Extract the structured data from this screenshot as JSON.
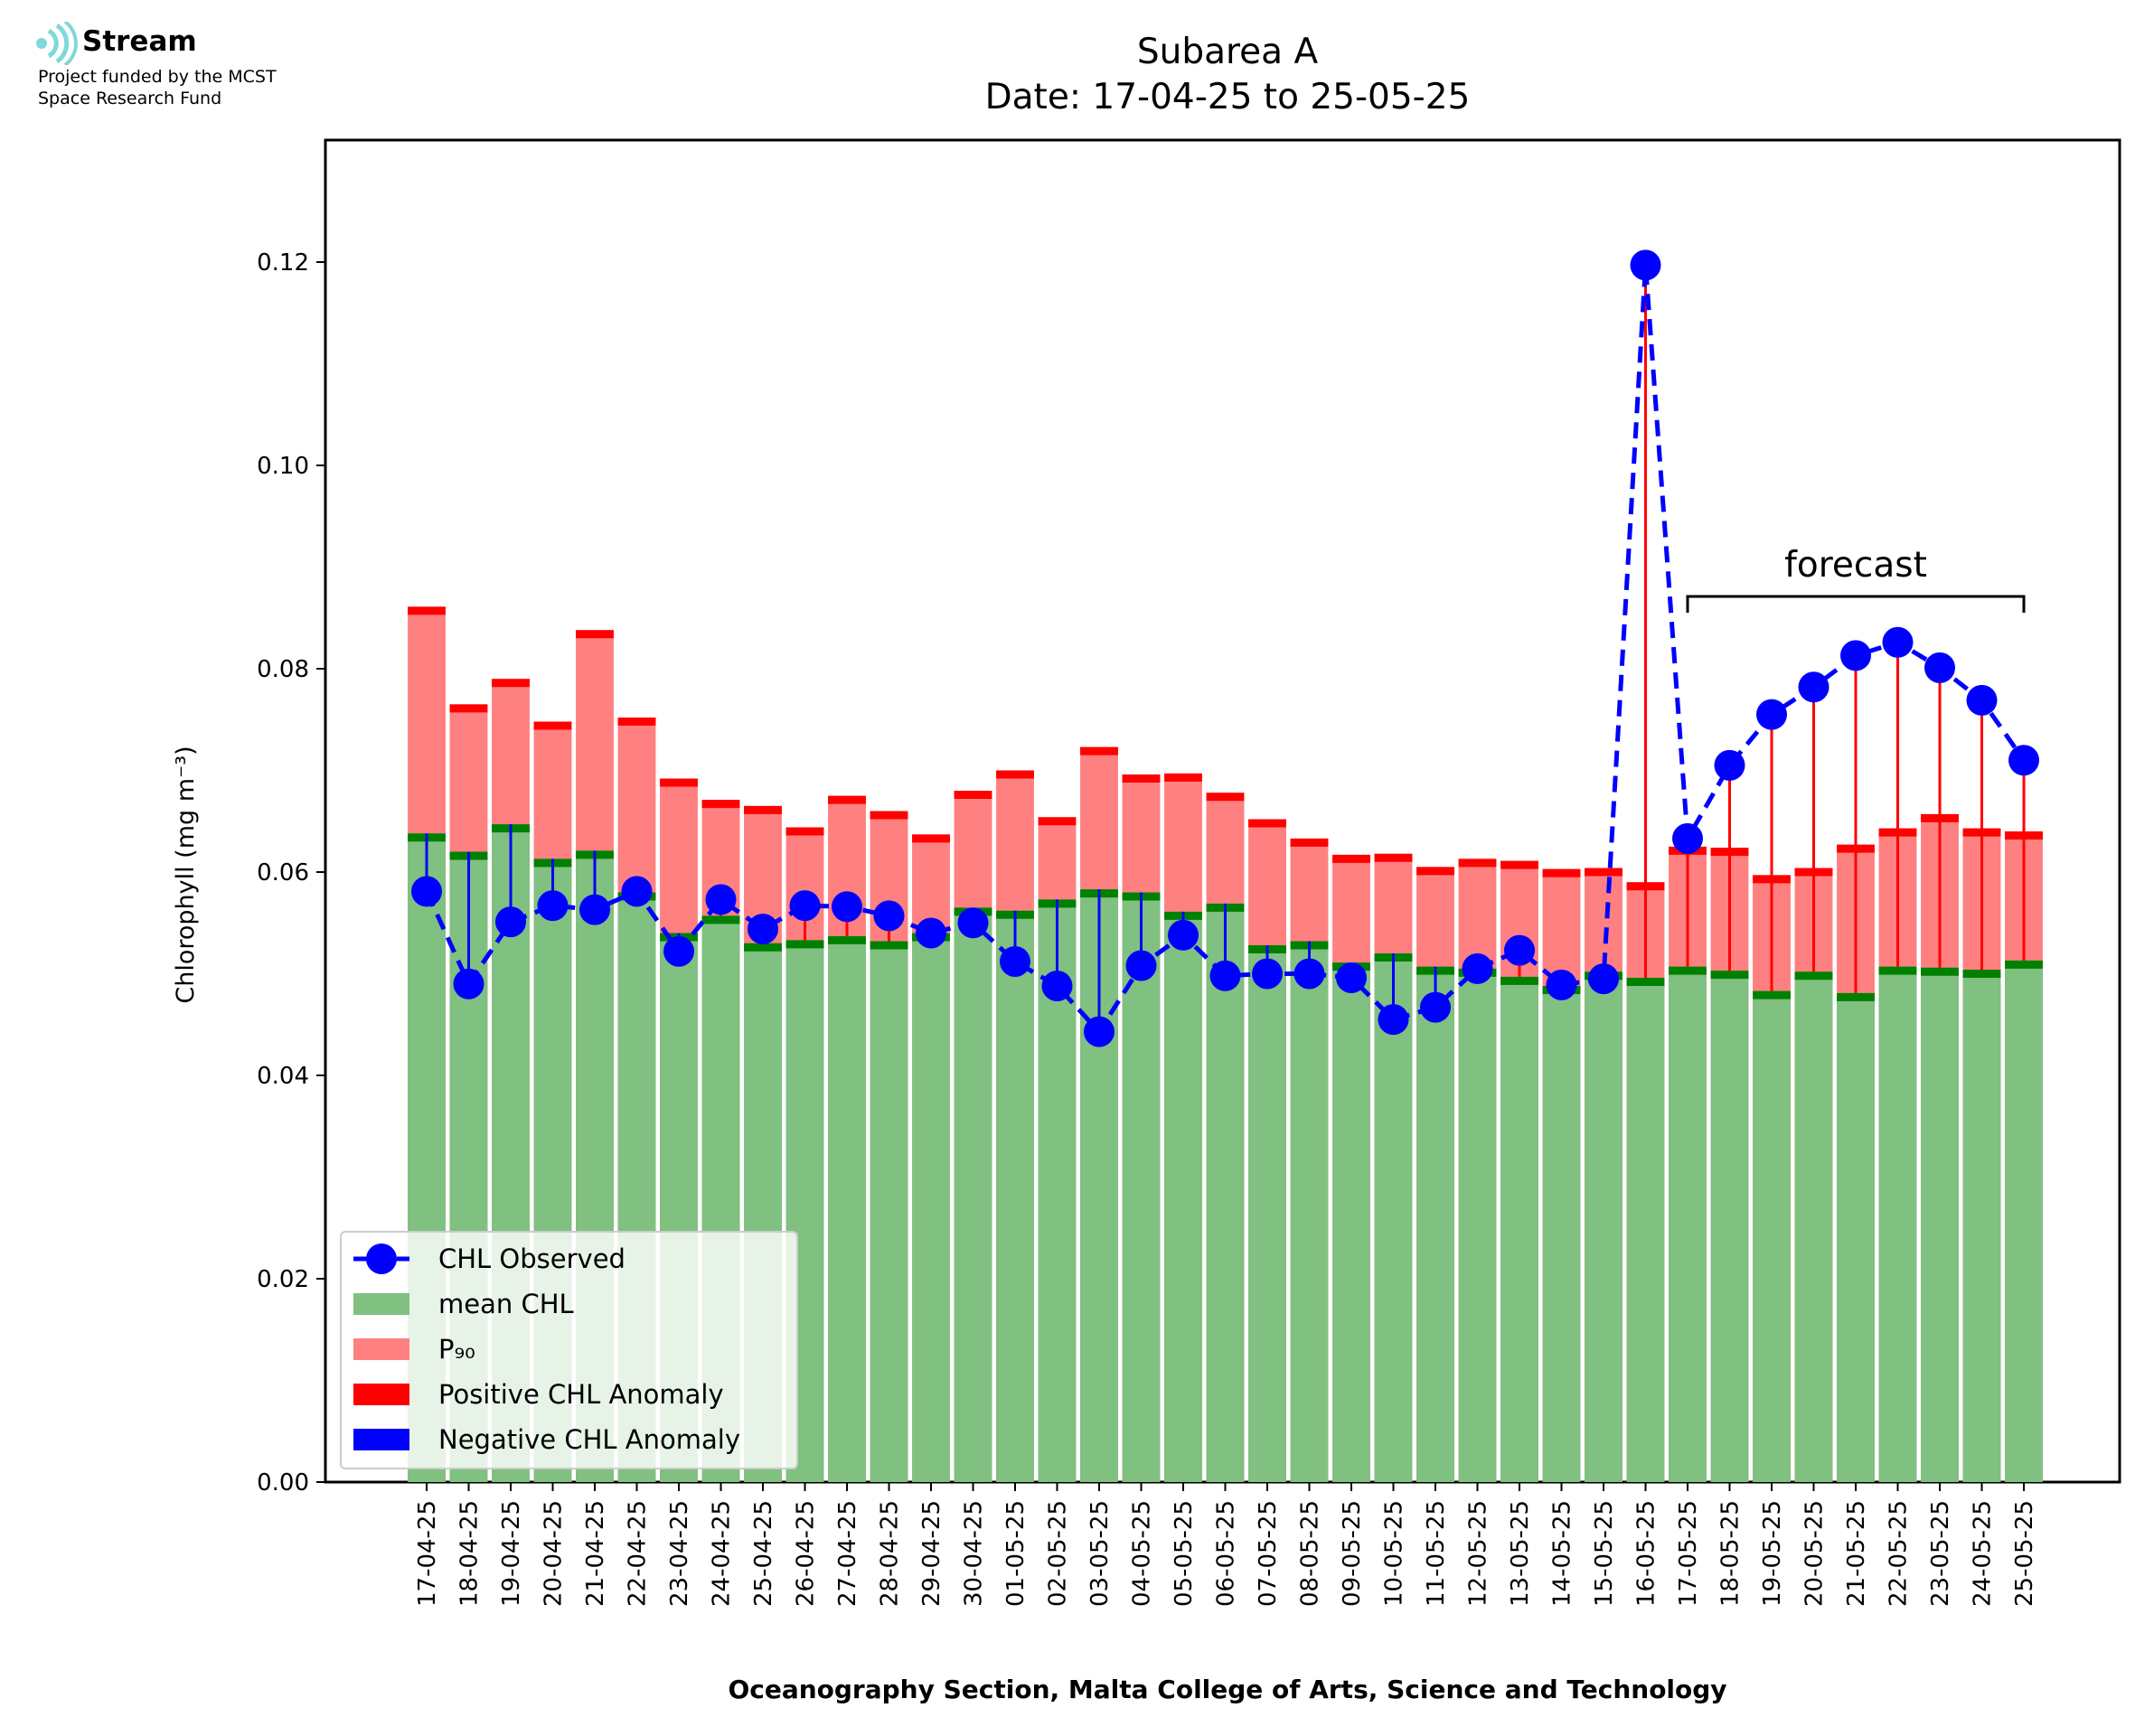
{
  "logo": {
    "name": "Stream",
    "line1": "Project funded by the MCST",
    "line2": "Space Research Fund",
    "icon": "stream-waves-icon",
    "color": "#7fd9d9"
  },
  "chart_data": {
    "type": "bar",
    "title": "Subarea A",
    "subtitle": "Date: 17-04-25 to 25-05-25",
    "xlabel": "Oceanography Section, Malta College of Arts, Science and Technology",
    "ylabel": "Chlorophyll (mg m⁻³)",
    "ylim": [
      0,
      0.132
    ],
    "yticks": [
      "0.00",
      "0.02",
      "0.04",
      "0.06",
      "0.08",
      "0.10",
      "0.12"
    ],
    "grid": false,
    "legend_position": "lower-left",
    "categories": [
      "17-04-25",
      "18-04-25",
      "19-04-25",
      "20-04-25",
      "21-04-25",
      "22-04-25",
      "23-04-25",
      "24-04-25",
      "25-04-25",
      "26-04-25",
      "27-04-25",
      "28-04-25",
      "29-04-25",
      "30-04-25",
      "01-05-25",
      "02-05-25",
      "03-05-25",
      "04-05-25",
      "05-05-25",
      "06-05-25",
      "07-05-25",
      "08-05-25",
      "09-05-25",
      "10-05-25",
      "11-05-25",
      "12-05-25",
      "13-05-25",
      "14-05-25",
      "15-05-25",
      "16-05-25",
      "17-05-25",
      "18-05-25",
      "19-05-25",
      "20-05-25",
      "21-05-25",
      "22-05-25",
      "23-05-25",
      "24-05-25",
      "25-05-25"
    ],
    "series": [
      {
        "name": "CHL Observed",
        "color": "#0000ff",
        "values": [
          0.0581,
          0.049,
          0.0551,
          0.0567,
          0.0563,
          0.0581,
          0.0522,
          0.0573,
          0.0544,
          0.0567,
          0.0566,
          0.0557,
          0.054,
          0.055,
          0.0512,
          0.0488,
          0.0443,
          0.0508,
          0.0538,
          0.0498,
          0.05,
          0.05,
          0.0496,
          0.0455,
          0.0467,
          0.0505,
          0.0523,
          0.0489,
          0.0495,
          0.1197,
          0.0633,
          0.0705,
          0.0755,
          0.0782,
          0.0813,
          0.0826,
          0.0801,
          0.0769,
          0.071
        ]
      },
      {
        "name": "mean CHL",
        "color": "#80c080",
        "values": [
          0.0638,
          0.062,
          0.0647,
          0.0613,
          0.0621,
          0.058,
          0.054,
          0.0557,
          0.053,
          0.0533,
          0.0537,
          0.0532,
          0.054,
          0.0565,
          0.0562,
          0.0573,
          0.0583,
          0.058,
          0.0561,
          0.0569,
          0.0528,
          0.0532,
          0.0511,
          0.052,
          0.0507,
          0.0505,
          0.0497,
          0.0488,
          0.0502,
          0.0496,
          0.0507,
          0.0503,
          0.0483,
          0.0502,
          0.0481,
          0.0507,
          0.0506,
          0.0504,
          0.0513
        ]
      },
      {
        "name": "P₉₀",
        "color": "#ff8080",
        "values": [
          0.0861,
          0.0765,
          0.079,
          0.0748,
          0.0838,
          0.0752,
          0.0692,
          0.0671,
          0.0665,
          0.0644,
          0.0675,
          0.066,
          0.0637,
          0.068,
          0.07,
          0.0654,
          0.0723,
          0.0696,
          0.0697,
          0.0678,
          0.0652,
          0.0633,
          0.0617,
          0.0618,
          0.0605,
          0.0613,
          0.0611,
          0.0603,
          0.0604,
          0.059,
          0.0625,
          0.0624,
          0.0597,
          0.0604,
          0.0627,
          0.0643,
          0.0657,
          0.0643,
          0.064
        ]
      },
      {
        "name": "Positive CHL Anomaly",
        "color": "#ff0000"
      },
      {
        "name": "Negative CHL Anomaly",
        "color": "#0000ff"
      }
    ],
    "annotations": [
      {
        "text": "forecast",
        "from": "17-05-25",
        "to": "25-05-25"
      }
    ]
  }
}
